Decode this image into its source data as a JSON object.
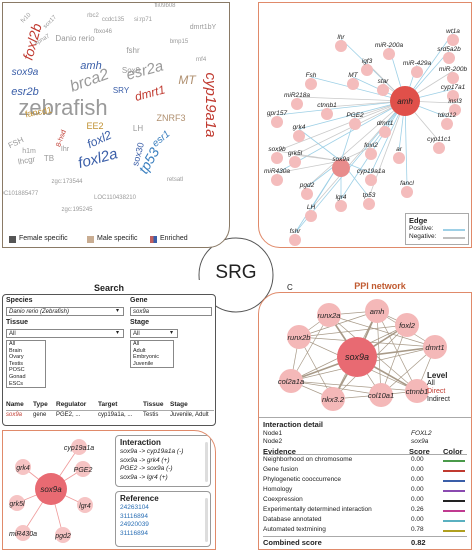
{
  "center": {
    "label": "SRG"
  },
  "wordcloud": {
    "words": [
      {
        "text": "zebrafish",
        "color": "#9a9a9a",
        "fs": 22
      },
      {
        "text": "cyp19a1a",
        "color": "#c03a30",
        "fs": 15
      },
      {
        "text": "foxl2b",
        "color": "#c03a30",
        "fs": 14
      },
      {
        "text": "brca2",
        "color": "#9a9a9a",
        "fs": 16
      },
      {
        "text": "esr2a",
        "color": "#9a9a9a",
        "fs": 15
      },
      {
        "text": "foxl2a",
        "color": "#3a5ea8",
        "fs": 15
      },
      {
        "text": "tp53",
        "color": "#3a7fbf",
        "fs": 14
      },
      {
        "text": "sox9a",
        "color": "#3a5ea8",
        "fs": 10
      },
      {
        "text": "esr2b",
        "color": "#3a5ea8",
        "fs": 11
      },
      {
        "text": "amh",
        "color": "#3a5ea8",
        "fs": 11
      },
      {
        "text": "dmrt1",
        "color": "#c03a30",
        "fs": 12
      },
      {
        "text": "MT",
        "color": "#b09070",
        "fs": 12
      },
      {
        "text": "foxl2",
        "color": "#3a5ea8",
        "fs": 12
      },
      {
        "text": "fancd1",
        "color": "#c09030",
        "fs": 9
      },
      {
        "text": "esr1",
        "color": "#3a7fbf",
        "fs": 10
      },
      {
        "text": "sox30",
        "color": "#3a5ea8",
        "fs": 9
      },
      {
        "text": "ZNRF3",
        "color": "#b09070",
        "fs": 9
      },
      {
        "text": "EE2",
        "color": "#c09030",
        "fs": 9
      },
      {
        "text": "FSH",
        "color": "#9a9a9a",
        "fs": 8
      },
      {
        "text": "Danio rerio",
        "color": "#9a9a9a",
        "fs": 8
      },
      {
        "text": "fshr",
        "color": "#9a9a9a",
        "fs": 8
      },
      {
        "text": "Sox9",
        "color": "#9a9a9a",
        "fs": 8
      },
      {
        "text": "SRY",
        "color": "#3a5ea8",
        "fs": 8
      },
      {
        "text": "dmrt1bY",
        "color": "#9a9a9a",
        "fs": 7
      },
      {
        "text": "LH",
        "color": "#9a9a9a",
        "fs": 8
      },
      {
        "text": "TB",
        "color": "#9a9a9a",
        "fs": 8
      },
      {
        "text": "lhcgr",
        "color": "#9a9a9a",
        "fs": 8
      },
      {
        "text": "h1m",
        "color": "#9a9a9a",
        "fs": 7
      },
      {
        "text": "Ihr",
        "color": "#9a9a9a",
        "fs": 7
      },
      {
        "text": "si:rp71",
        "color": "#9a9a9a",
        "fs": 6
      },
      {
        "text": "LOC110438210",
        "color": "#9a9a9a",
        "fs": 6
      },
      {
        "text": "LOC101885477",
        "color": "#9a9a9a",
        "fs": 6
      },
      {
        "text": "zgc:173544",
        "color": "#9a9a9a",
        "fs": 6
      },
      {
        "text": "zgc:195245",
        "color": "#9a9a9a",
        "fs": 6
      },
      {
        "text": "fv10",
        "color": "#9a9a9a",
        "fs": 6
      },
      {
        "text": "sox17",
        "color": "#9a9a9a",
        "fs": 6
      },
      {
        "text": "retsatl",
        "color": "#9a9a9a",
        "fs": 6
      },
      {
        "text": "8-hsd",
        "color": "#c03a30",
        "fs": 7
      },
      {
        "text": "rbc2",
        "color": "#9a9a9a",
        "fs": 6
      },
      {
        "text": "ccdc135",
        "color": "#9a9a9a",
        "fs": 6
      },
      {
        "text": "kpna7",
        "color": "#9a9a9a",
        "fs": 6
      },
      {
        "text": "bmp15",
        "color": "#9a9a9a",
        "fs": 6
      },
      {
        "text": "fli09b08",
        "color": "#9a9a9a",
        "fs": 6
      },
      {
        "text": "fbxo46",
        "color": "#9a9a9a",
        "fs": 6
      },
      {
        "text": "rnf4",
        "color": "#9a9a9a",
        "fs": 6
      }
    ],
    "legend": [
      {
        "label": "Female specific",
        "color": "#555555"
      },
      {
        "label": "Male specific",
        "color": "#c9ad92"
      },
      {
        "label": "Enriched",
        "color": "#c06060"
      }
    ]
  },
  "network": {
    "center_gene": "amh",
    "nodes": [
      "lhr",
      "miR-200a",
      "wt1a",
      "srd5a2b",
      "Fsh",
      "igf3",
      "miR-429a",
      "miR-200b",
      "MT",
      "star",
      "miR218a",
      "cyp17a1",
      "insl3",
      "gpr157",
      "ctnnb1",
      "PGE2",
      "dmrt1",
      "tdrd12",
      "grk4",
      "sox9b",
      "foxl2",
      "ar",
      "cyp11c1",
      "grk5l",
      "sox9a",
      "miR430a",
      "cyp19a1a",
      "pgd2",
      "fancl",
      "lgr4",
      "tp53",
      "LH",
      "fshr"
    ],
    "legend_title": "Edge",
    "edge_legend": [
      {
        "label": "Positive:",
        "color": "#9ed0e6"
      },
      {
        "label": "Negative:",
        "color": "#bfbfbf"
      }
    ]
  },
  "search": {
    "title": "Search",
    "species_label": "Species",
    "species_value": "Danio rerio (Zebrafish)",
    "gene_label": "Gene",
    "gene_value": "sox9a",
    "tissue_label": "Tissue",
    "tissue_selected": "All",
    "tissue_options": [
      "All",
      "Brain",
      "Ovary",
      "Testis",
      "POSC",
      "Gonad",
      "ESCs"
    ],
    "stage_label": "Stage",
    "stage_selected": "All",
    "stage_options": [
      "All",
      "Adult",
      "Embryonic",
      "Juvenile"
    ],
    "table_headers": [
      "Name",
      "Type",
      "Regulator",
      "Target",
      "Tissue",
      "Stage"
    ],
    "table_row": [
      "sox9a",
      "gene",
      "PGE2, ...",
      "cyp19a1a, ...",
      "Testis",
      "Juvenile, Adult"
    ]
  },
  "interaction_panel": {
    "center_gene": "sox9a",
    "nodes": [
      "cyp19a1a",
      "PGE2",
      "grk4",
      "grk5l",
      "lgr4",
      "miR430a",
      "pgd2"
    ],
    "interaction_title": "Interaction",
    "interactions": [
      "sox9a -> cyp19a1a (-)",
      "sox9a -> grk4 (+)",
      "PGE2 -> sox9a (-)",
      "sox9a -> lgr4 (+)"
    ],
    "reference_title": "Reference",
    "references": [
      "24263104",
      "31116894",
      "24920039",
      "31116894"
    ]
  },
  "ppi": {
    "panel_letter": "C",
    "title": "PPI network",
    "center_gene": "sox9a",
    "nodes": [
      "runx2a",
      "amh",
      "foxl2",
      "runx2b",
      "dmrt1",
      "col2a1a",
      "nkx3.2",
      "col10a1",
      "ctnnb1"
    ],
    "level_title": "Level",
    "level_items": [
      {
        "label": "All",
        "color": "#222222"
      },
      {
        "label": "Direct",
        "color": "#c03a30"
      },
      {
        "label": "Indirect",
        "color": "#222222"
      }
    ],
    "detail_title": "Interaction detail",
    "node1_label": "Node1",
    "node1_value": "FOXL2",
    "node2_label": "Node2",
    "node2_value": "sox9a",
    "evidence_header": "Evidence",
    "score_header": "Score",
    "color_header": "Color",
    "evidence": [
      {
        "name": "Neighborhood on chromosome",
        "score": "0.00",
        "color": "#4a9a4a"
      },
      {
        "name": "Gene fusion",
        "score": "0.00",
        "color": "#c03a30"
      },
      {
        "name": "Phylogenetic cooccurrence",
        "score": "0.00",
        "color": "#3a5ea8"
      },
      {
        "name": "Homology",
        "score": "0.00",
        "color": "#8a4ab0"
      },
      {
        "name": "Coexpression",
        "score": "0.00",
        "color": "#222222"
      },
      {
        "name": "Experimentally determined interaction",
        "score": "0.26",
        "color": "#c03a90"
      },
      {
        "name": "Database annotated",
        "score": "0.00",
        "color": "#5ab0c0"
      },
      {
        "name": "Automated textmining",
        "score": "0.78",
        "color": "#b0a020"
      }
    ],
    "combined_label": "Combined score",
    "combined_value": "0.82"
  }
}
